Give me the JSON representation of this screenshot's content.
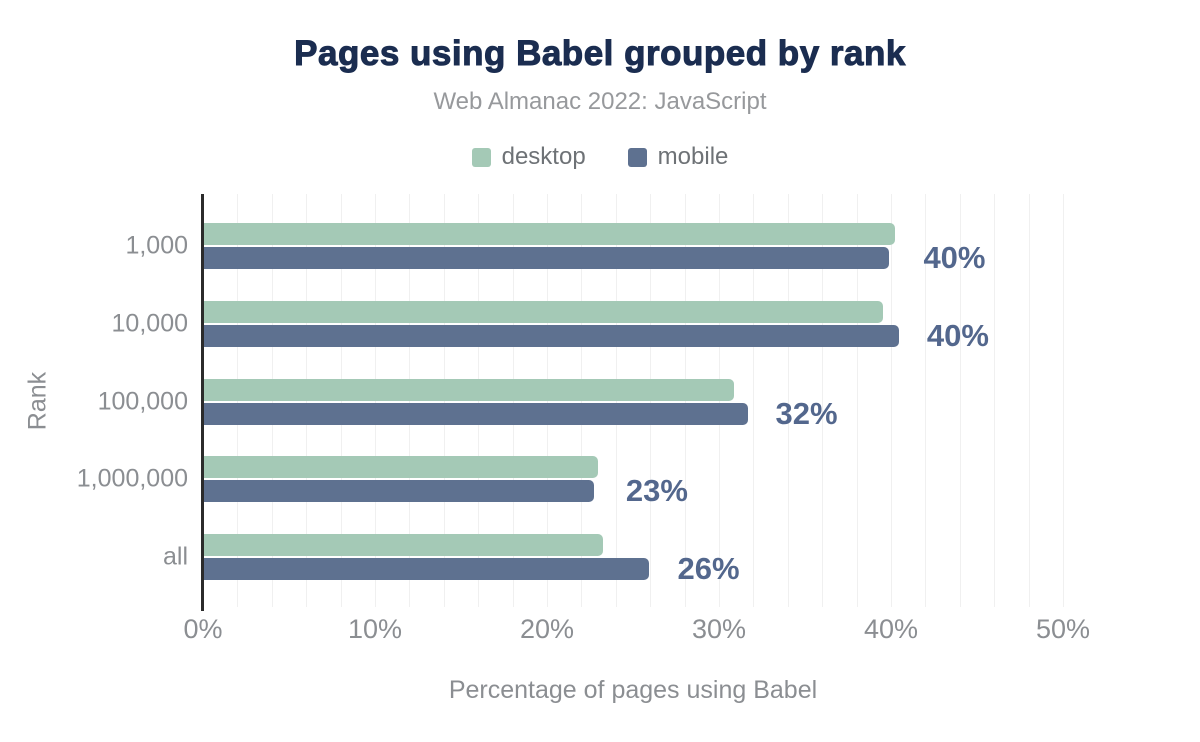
{
  "header": {
    "title": "Pages using Babel grouped by rank",
    "subtitle": "Web Almanac 2022: JavaScript"
  },
  "colors": {
    "title": "#1b2d50",
    "subtitle": "#97999c",
    "legend_label": "#6e7276",
    "value_label": "#53678d",
    "axis_text": "#8b8e92",
    "gridline": "#f0f0f0",
    "axis_line": "#2b2b2b",
    "desktop": "#a4c9b6",
    "mobile": "#5e7190"
  },
  "chart_data": {
    "type": "bar",
    "orientation": "horizontal",
    "title": "Pages using Babel grouped by rank",
    "subtitle": "Web Almanac 2022: JavaScript",
    "categories": [
      "1,000",
      "10,000",
      "100,000",
      "1,000,000",
      "all"
    ],
    "series": [
      {
        "name": "desktop",
        "color": "#a4c9b6",
        "values": [
          40.2,
          39.5,
          30.8,
          22.9,
          23.2
        ]
      },
      {
        "name": "mobile",
        "color": "#5e7190",
        "values": [
          39.8,
          40.4,
          31.6,
          22.7,
          25.9
        ]
      }
    ],
    "value_labels": [
      "40%",
      "40%",
      "32%",
      "23%",
      "26%"
    ],
    "xlabel": "Percentage of pages using Babel",
    "ylabel": "Rank",
    "xlim": [
      0,
      50
    ],
    "x_ticks": [
      "0%",
      "10%",
      "20%",
      "30%",
      "40%",
      "50%"
    ],
    "x_tick_values": [
      0,
      10,
      20,
      30,
      40,
      50
    ],
    "grid": "vertical gridlines every 2%",
    "legend_position": "top"
  }
}
